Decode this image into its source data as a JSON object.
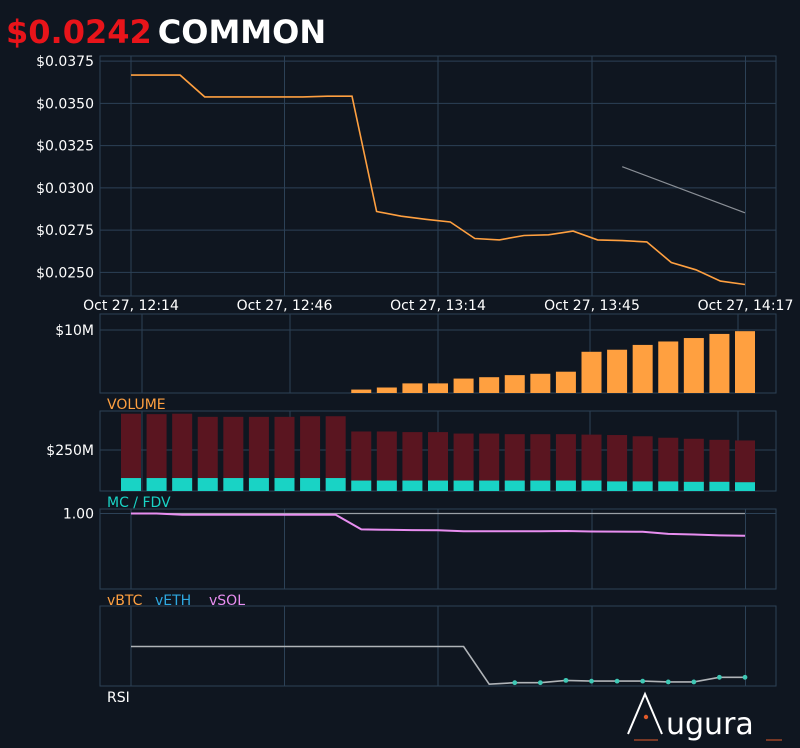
{
  "header": {
    "price": "$0.0242",
    "symbol": "COMMON"
  },
  "colors": {
    "background": "#0f1620",
    "grid": "#2c4156",
    "price_line": "#ffa040",
    "trend_line": "#8a8f96",
    "mc_bar": "#ffa040",
    "volume_bar_dark": "#5a1520",
    "volume_bar_teal": "#19d3c5",
    "mc_fdv_line": "#e88ef0",
    "mc_fdv_ref": "#9aa0a6",
    "rsi_line": "#b0b4b8",
    "rsi_dot": "#3fc8b5",
    "label_volume": "#ffa040",
    "label_mc_fdv": "#19d3c5",
    "label_vbtc": "#ffa040",
    "label_veth": "#2ea8e0",
    "label_vsol": "#e88ef0",
    "logo_accent": "#e05a2a"
  },
  "chart_data": [
    {
      "type": "line",
      "panel": "price",
      "x_ticks": [
        "Oct 27, 12:14",
        "Oct 27, 12:46",
        "Oct 27, 13:14",
        "Oct 27, 13:45",
        "Oct 27, 14:17"
      ],
      "y_ticks": [
        "$0.0375",
        "$0.0350",
        "$0.0325",
        "$0.0300",
        "$0.0275",
        "$0.0250"
      ],
      "ylim": [
        0.0236,
        0.0378
      ],
      "series": [
        {
          "values": [
            0.03667,
            0.03667,
            0.03667,
            0.03538,
            0.03538,
            0.03538,
            0.03538,
            0.03538,
            0.03542,
            0.03542,
            0.0286,
            0.02832,
            0.02814,
            0.02798,
            0.027,
            0.02692,
            0.02718,
            0.02722,
            0.02744,
            0.02692,
            0.02688,
            0.0268,
            0.02558,
            0.02515,
            0.02448,
            0.02428
          ]
        }
      ],
      "trend": {
        "start_index": 20,
        "start": 0.03125,
        "end": 0.02852
      }
    },
    {
      "type": "bar",
      "panel": "market-cap",
      "y_ticks": [
        "$10M"
      ],
      "ylim": [
        0,
        11.5
      ],
      "values": [
        0,
        0,
        0,
        0,
        0,
        0,
        0,
        0,
        0,
        0.5,
        0.8,
        1.4,
        1.4,
        2.1,
        2.3,
        2.6,
        2.8,
        3.1,
        6.0,
        6.3,
        7.0,
        7.5,
        8.0,
        8.6,
        9.0
      ]
    },
    {
      "type": "bar",
      "panel": "volume",
      "label": "VOLUME",
      "y_ticks": [
        "$250M"
      ],
      "ylim": [
        0,
        383
      ],
      "series": [
        {
          "values": [
            370,
            368,
            370,
            355,
            355,
            355,
            355,
            358,
            358,
            285,
            285,
            282,
            282,
            275,
            275,
            272,
            272,
            272,
            270,
            268,
            262,
            255,
            250,
            245,
            242
          ]
        },
        {
          "values": [
            62,
            62,
            62,
            62,
            62,
            62,
            62,
            62,
            62,
            50,
            50,
            50,
            50,
            50,
            50,
            50,
            50,
            50,
            50,
            46,
            46,
            46,
            44,
            44,
            42
          ]
        }
      ]
    },
    {
      "type": "line",
      "panel": "mc-fdv",
      "label": "MC / FDV",
      "y_ticks": [
        "1.00"
      ],
      "ylim": [
        0,
        1.06
      ],
      "series": [
        {
          "values": [
            1.0,
            1.0,
            0.985,
            0.985,
            0.985,
            0.985,
            0.985,
            0.985,
            0.985,
            0.79,
            0.785,
            0.78,
            0.778,
            0.765,
            0.765,
            0.765,
            0.765,
            0.768,
            0.762,
            0.76,
            0.758,
            0.73,
            0.722,
            0.71,
            0.705
          ]
        }
      ],
      "reference": 1.0
    },
    {
      "type": "line",
      "panel": "rsi",
      "label": "RSI",
      "legend": [
        "vBTC",
        "vETH",
        "vSOL"
      ],
      "ylim": [
        0,
        100
      ],
      "series": [
        {
          "values": [
            50,
            50,
            50,
            50,
            50,
            50,
            50,
            50,
            50,
            50,
            50,
            50,
            50,
            50,
            1,
            3,
            3,
            6,
            5,
            5,
            5,
            4,
            4,
            10,
            10
          ]
        }
      ],
      "dot_start": 15
    }
  ],
  "logo": {
    "text": "ugura"
  }
}
